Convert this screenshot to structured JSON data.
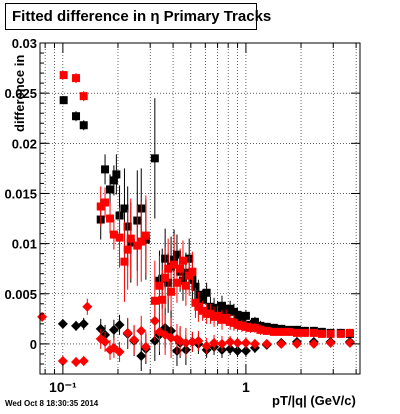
{
  "chart_data": {
    "type": "scatter",
    "title": "Fitted difference in η  Primary Tracks",
    "xlabel": "pT/|q| (GeV/c)",
    "ylabel": "difference in",
    "footer": "Wed Oct  8 18:30:35 2014",
    "x_scale": "log",
    "xlim": [
      0.075,
      4.2
    ],
    "ylim": [
      -0.003,
      0.03
    ],
    "x_tick_labels": [
      "10⁻¹",
      "1"
    ],
    "y_ticks": [
      0,
      0.005,
      0.01,
      0.015,
      0.02,
      0.025,
      0.03
    ],
    "y_tick_labels": [
      "0",
      "0.005",
      "0.01",
      "0.015",
      "0.02",
      "0.025",
      "0.03"
    ],
    "grid": true,
    "colors": {
      "series_black": "#000000",
      "series_red": "#ff0000"
    },
    "series": [
      {
        "marker": "square",
        "color": "#000000",
        "points": [
          [
            0.101,
            0.0243,
            0.0004
          ],
          [
            0.118,
            0.0227,
            0.0005
          ],
          [
            0.13,
            0.0218,
            0.0005
          ],
          [
            0.161,
            0.0124,
            0.002
          ],
          [
            0.17,
            0.0174,
            0.0015
          ],
          [
            0.181,
            0.0154,
            0.0015
          ],
          [
            0.19,
            0.0163,
            0.0015
          ],
          [
            0.196,
            0.0169,
            0.002
          ],
          [
            0.204,
            0.0128,
            0.003
          ],
          [
            0.217,
            0.0135,
            0.004
          ],
          [
            0.226,
            0.0117,
            0.004
          ],
          [
            0.235,
            0.0101,
            0.004
          ],
          [
            0.255,
            0.0123,
            0.005
          ],
          [
            0.268,
            0.0135,
            0.004
          ],
          [
            0.284,
            0.0104,
            0.004
          ],
          [
            0.318,
            0.0185,
            0.006
          ],
          [
            0.337,
            0.0063,
            0.003
          ],
          [
            0.349,
            0.0065,
            0.003
          ],
          [
            0.362,
            0.0085,
            0.003
          ],
          [
            0.376,
            0.0061,
            0.003
          ],
          [
            0.39,
            0.0077,
            0.003
          ],
          [
            0.405,
            0.0084,
            0.003
          ],
          [
            0.42,
            0.0089,
            0.002
          ],
          [
            0.437,
            0.0072,
            0.002
          ],
          [
            0.453,
            0.0063,
            0.002
          ],
          [
            0.47,
            0.0071,
            0.002
          ],
          [
            0.49,
            0.0085,
            0.002
          ],
          [
            0.51,
            0.0064,
            0.002
          ],
          [
            0.53,
            0.0057,
            0.0015
          ],
          [
            0.55,
            0.0049,
            0.0015
          ],
          [
            0.58,
            0.0044,
            0.001
          ],
          [
            0.61,
            0.0051,
            0.001
          ],
          [
            0.64,
            0.0037,
            0.001
          ],
          [
            0.67,
            0.0036,
            0.001
          ],
          [
            0.7,
            0.0033,
            0.001
          ],
          [
            0.74,
            0.0038,
            0.001
          ],
          [
            0.78,
            0.0031,
            0.0008
          ],
          [
            0.82,
            0.0035,
            0.0008
          ],
          [
            0.86,
            0.0032,
            0.0008
          ],
          [
            0.9,
            0.0029,
            0.0006
          ],
          [
            0.95,
            0.0026,
            0.0006
          ],
          [
            1.0,
            0.0028,
            0.0006
          ],
          [
            1.06,
            0.0019,
            0.0005
          ],
          [
            1.12,
            0.0022,
            0.0005
          ],
          [
            1.2,
            0.0018,
            0.0005
          ],
          [
            1.3,
            0.0017,
            0.0004
          ],
          [
            1.42,
            0.0016,
            0.0004
          ],
          [
            1.56,
            0.0015,
            0.0004
          ],
          [
            1.72,
            0.0014,
            0.0004
          ],
          [
            1.9,
            0.0014,
            0.0004
          ],
          [
            2.1,
            0.0013,
            0.0004
          ],
          [
            2.35,
            0.0013,
            0.0004
          ],
          [
            2.6,
            0.0012,
            0.0004
          ],
          [
            2.9,
            0.0011,
            0.0004
          ],
          [
            3.3,
            0.0011,
            0.0004
          ],
          [
            3.7,
            0.001,
            0.0004
          ]
        ]
      },
      {
        "marker": "square",
        "color": "#ff0000",
        "points": [
          [
            0.101,
            0.0268,
            0.0004
          ],
          [
            0.118,
            0.0265,
            0.0005
          ],
          [
            0.13,
            0.0247,
            0.0005
          ],
          [
            0.161,
            0.0137,
            0.002
          ],
          [
            0.17,
            0.0141,
            0.0015
          ],
          [
            0.181,
            0.0125,
            0.0015
          ],
          [
            0.19,
            0.0109,
            0.0015
          ],
          [
            0.204,
            0.0106,
            0.003
          ],
          [
            0.217,
            0.0082,
            0.004
          ],
          [
            0.226,
            0.0094,
            0.004
          ],
          [
            0.235,
            0.0105,
            0.004
          ],
          [
            0.255,
            0.0098,
            0.004
          ],
          [
            0.268,
            0.0102,
            0.004
          ],
          [
            0.284,
            0.0108,
            0.004
          ],
          [
            0.318,
            0.0043,
            0.004
          ],
          [
            0.337,
            0.0058,
            0.003
          ],
          [
            0.349,
            0.0044,
            0.003
          ],
          [
            0.362,
            0.0066,
            0.003
          ],
          [
            0.376,
            0.0075,
            0.003
          ],
          [
            0.39,
            0.0052,
            0.003
          ],
          [
            0.405,
            0.0079,
            0.003
          ],
          [
            0.42,
            0.0061,
            0.002
          ],
          [
            0.437,
            0.0075,
            0.002
          ],
          [
            0.453,
            0.0083,
            0.002
          ],
          [
            0.47,
            0.0058,
            0.002
          ],
          [
            0.49,
            0.0068,
            0.002
          ],
          [
            0.51,
            0.0072,
            0.002
          ],
          [
            0.53,
            0.0041,
            0.0015
          ],
          [
            0.55,
            0.0037,
            0.0015
          ],
          [
            0.58,
            0.0033,
            0.001
          ],
          [
            0.61,
            0.003,
            0.001
          ],
          [
            0.64,
            0.003,
            0.001
          ],
          [
            0.67,
            0.0027,
            0.001
          ],
          [
            0.7,
            0.0028,
            0.001
          ],
          [
            0.74,
            0.0024,
            0.001
          ],
          [
            0.78,
            0.0026,
            0.0008
          ],
          [
            0.82,
            0.0022,
            0.0008
          ],
          [
            0.86,
            0.0021,
            0.0008
          ],
          [
            0.9,
            0.0019,
            0.0006
          ],
          [
            0.95,
            0.0018,
            0.0006
          ],
          [
            1.0,
            0.0017,
            0.0006
          ],
          [
            1.06,
            0.0016,
            0.0005
          ],
          [
            1.12,
            0.0016,
            0.0005
          ],
          [
            1.2,
            0.0014,
            0.0005
          ],
          [
            1.3,
            0.0013,
            0.0004
          ],
          [
            1.42,
            0.0012,
            0.0004
          ],
          [
            1.56,
            0.0012,
            0.0004
          ],
          [
            1.72,
            0.0012,
            0.0004
          ],
          [
            1.9,
            0.0011,
            0.0004
          ],
          [
            2.1,
            0.0011,
            0.0004
          ],
          [
            2.35,
            0.0011,
            0.0004
          ],
          [
            2.6,
            0.001,
            0.0004
          ],
          [
            2.9,
            0.001,
            0.0004
          ],
          [
            3.3,
            0.001,
            0.0004
          ],
          [
            3.7,
            0.0011,
            0.0004
          ]
        ]
      },
      {
        "marker": "diamond",
        "color": "#000000",
        "points": [
          [
            0.1,
            0.002,
            0.0004
          ],
          [
            0.118,
            0.0018,
            0.0005
          ],
          [
            0.13,
            0.002,
            0.0006
          ],
          [
            0.161,
            0.0015,
            0.001
          ],
          [
            0.17,
            0.0009,
            0.001
          ],
          [
            0.19,
            0.0014,
            0.001
          ],
          [
            0.204,
            0.0019,
            0.001
          ],
          [
            0.226,
            0.001,
            0.0015
          ],
          [
            0.245,
            0.0003,
            0.0015
          ],
          [
            0.268,
            -0.0012,
            0.0015
          ],
          [
            0.284,
            -0.0005,
            0.0015
          ],
          [
            0.318,
            0.0003,
            0.002
          ],
          [
            0.337,
            0.0009,
            0.002
          ],
          [
            0.362,
            0.0016,
            0.002
          ],
          [
            0.39,
            0.0013,
            0.002
          ],
          [
            0.42,
            -0.0007,
            0.0015
          ],
          [
            0.437,
            0.0001,
            0.0015
          ],
          [
            0.47,
            -0.0006,
            0.0015
          ],
          [
            0.51,
            0.0002,
            0.001
          ],
          [
            0.55,
            0.0,
            0.001
          ],
          [
            0.61,
            -0.0006,
            0.0008
          ],
          [
            0.67,
            -0.0003,
            0.0008
          ],
          [
            0.74,
            -0.0006,
            0.0008
          ],
          [
            0.82,
            -0.0005,
            0.0006
          ],
          [
            0.9,
            -0.0007,
            0.0006
          ],
          [
            1.0,
            -0.0007,
            0.0006
          ],
          [
            1.12,
            -0.0004,
            0.0005
          ],
          [
            1.3,
            -0.0001,
            0.0004
          ],
          [
            1.56,
            0.0001,
            0.0004
          ],
          [
            1.9,
            0.0002,
            0.0004
          ],
          [
            2.35,
            0.0002,
            0.0004
          ],
          [
            2.9,
            0.0002,
            0.0004
          ],
          [
            3.7,
            0.0002,
            0.0004
          ]
        ]
      },
      {
        "marker": "diamond",
        "color": "#ff0000",
        "points": [
          [
            0.077,
            0.0027,
            0.0004
          ],
          [
            0.1,
            -0.0017,
            0.0005
          ],
          [
            0.118,
            -0.0018,
            0.0005
          ],
          [
            0.13,
            -0.0017,
            0.0005
          ],
          [
            0.136,
            0.0037,
            0.0008
          ],
          [
            0.161,
            0.0005,
            0.001
          ],
          [
            0.17,
            0.0002,
            0.001
          ],
          [
            0.181,
            -0.0006,
            0.001
          ],
          [
            0.19,
            -0.0004,
            0.001
          ],
          [
            0.204,
            -0.0008,
            0.001
          ],
          [
            0.226,
            0.0011,
            0.0015
          ],
          [
            0.245,
            0.0004,
            0.0015
          ],
          [
            0.268,
            0.0013,
            0.0015
          ],
          [
            0.284,
            -0.0003,
            0.0015
          ],
          [
            0.318,
            0.0023,
            0.002
          ],
          [
            0.337,
            0.0012,
            0.002
          ],
          [
            0.362,
            0.0009,
            0.002
          ],
          [
            0.39,
            0.0006,
            0.002
          ],
          [
            0.42,
            0.0005,
            0.0015
          ],
          [
            0.437,
            0.0003,
            0.0015
          ],
          [
            0.47,
            0.0001,
            0.0015
          ],
          [
            0.51,
            0.0002,
            0.001
          ],
          [
            0.55,
            0.0003,
            0.001
          ],
          [
            0.61,
            -0.0002,
            0.0008
          ],
          [
            0.67,
            0.0001,
            0.0008
          ],
          [
            0.74,
            0.0,
            0.0008
          ],
          [
            0.82,
            0.0002,
            0.0006
          ],
          [
            0.9,
            0.0001,
            0.0006
          ],
          [
            1.0,
            0.0001,
            0.0006
          ],
          [
            1.12,
            0.0,
            0.0005
          ],
          [
            1.3,
            0.0,
            0.0004
          ],
          [
            1.56,
            0.0,
            0.0004
          ],
          [
            1.9,
            0.0,
            0.0004
          ],
          [
            2.35,
            0.0,
            0.0004
          ],
          [
            2.9,
            0.0001,
            0.0004
          ],
          [
            3.7,
            0.0001,
            0.0004
          ]
        ]
      }
    ]
  }
}
